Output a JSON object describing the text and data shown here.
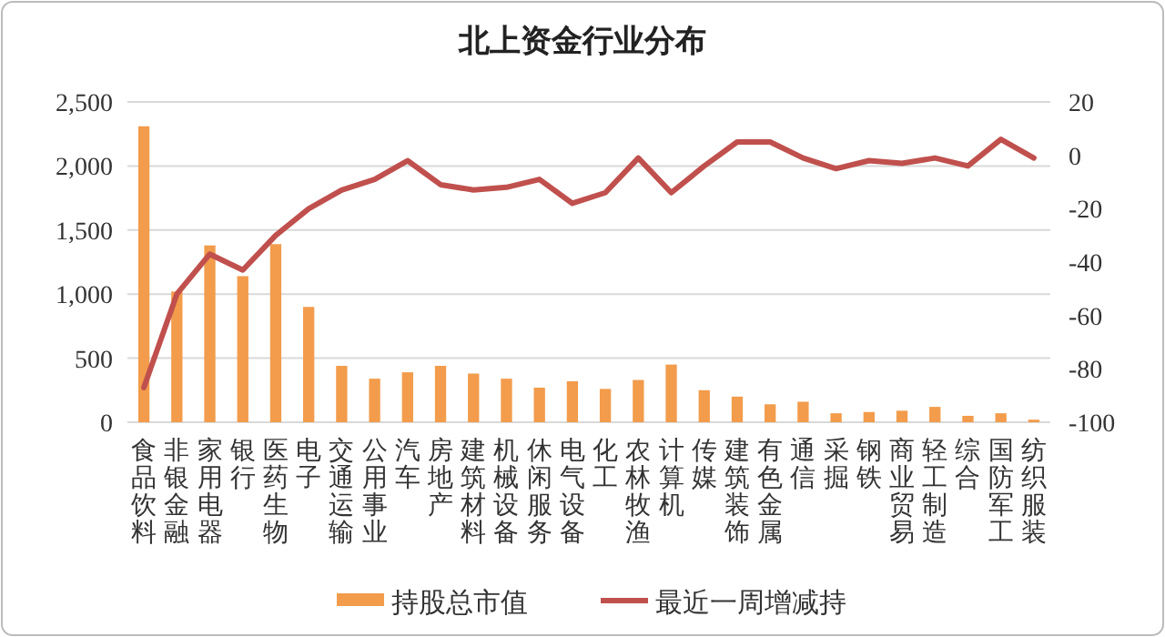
{
  "chart_data": {
    "type": "bar",
    "title": "北上资金行业分布",
    "categories": [
      "食品饮料",
      "非银金融",
      "家用电器",
      "银行",
      "医药生物",
      "电子",
      "交通运输",
      "公用事业",
      "汽车",
      "房地产",
      "建筑材料",
      "机械设备",
      "休闲服务",
      "电气设备",
      "化工",
      "农林牧渔",
      "计算机",
      "传媒",
      "建筑装饰",
      "有色金属",
      "通信",
      "采掘",
      "钢铁",
      "商业贸易",
      "轻工制造",
      "综合",
      "国防军工",
      "纺织服装"
    ],
    "series": [
      {
        "name": "持股总市值",
        "color": "#f29c4c",
        "values": [
          2310,
          1020,
          1380,
          1140,
          1390,
          900,
          440,
          340,
          390,
          440,
          380,
          340,
          270,
          320,
          260,
          330,
          450,
          250,
          200,
          140,
          160,
          70,
          80,
          90,
          120,
          50,
          70,
          20
        ]
      },
      {
        "name": "最近一周增减持",
        "type": "line",
        "axis": "y2",
        "color": "#c0504d",
        "values": [
          -87,
          -52,
          -37,
          -43,
          -30,
          -20,
          -13,
          -9,
          -2,
          -11,
          -13,
          -12,
          -9,
          -18,
          -14,
          -1,
          -14,
          -4,
          5,
          5,
          -1,
          -5,
          -2,
          -3,
          -1,
          -4,
          6,
          -1
        ]
      }
    ],
    "ylim": [
      0,
      2500
    ],
    "yticks": [
      0,
      500,
      {
        "value": 1000,
        "label": "1,000"
      },
      {
        "value": 1500,
        "label": "1,500"
      },
      {
        "value": 2000,
        "label": "2,000"
      },
      {
        "value": 2500,
        "label": "2,500"
      }
    ],
    "y2lim": [
      -100,
      20
    ],
    "y2ticks": [
      -100,
      -80,
      -60,
      -40,
      -20,
      0,
      20
    ],
    "grid": "y",
    "legend": "bottom"
  }
}
